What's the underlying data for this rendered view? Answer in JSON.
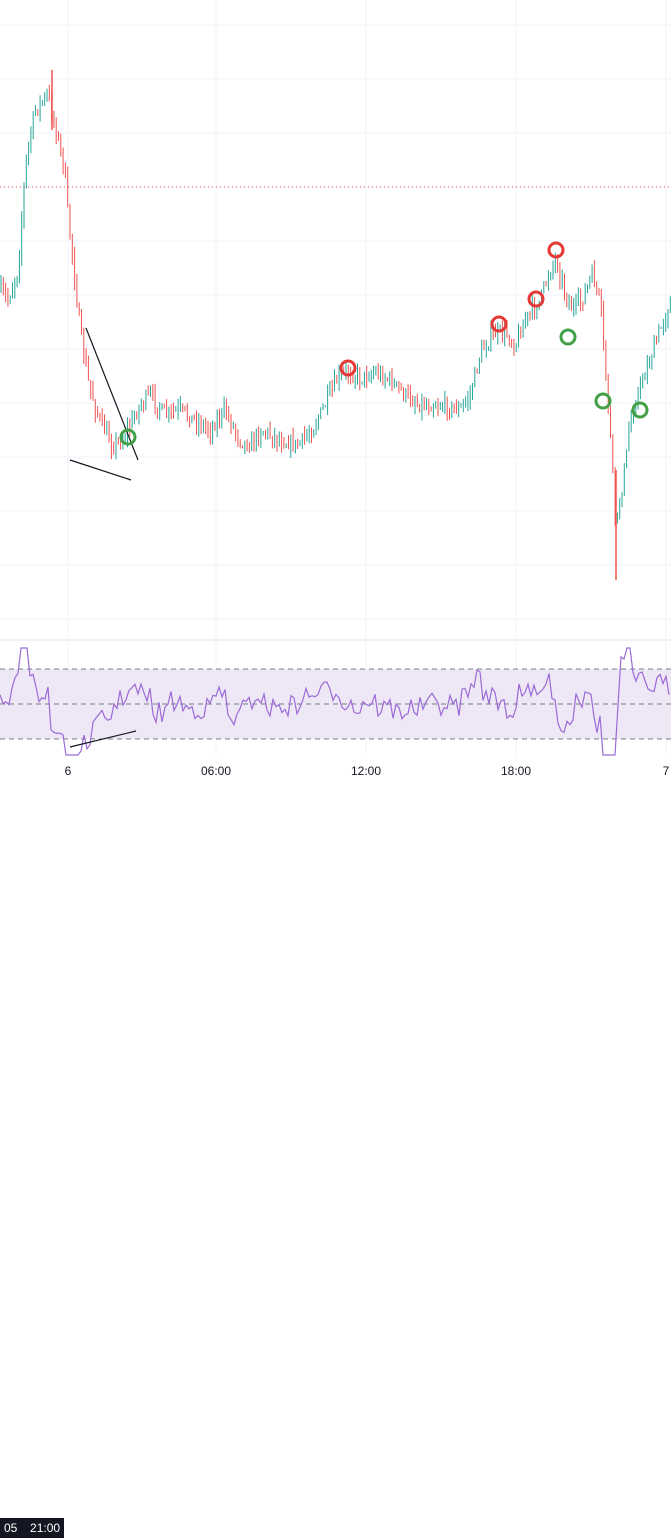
{
  "chart_data": [
    {
      "type": "candlestick",
      "panel": "price",
      "up_color": "#26a69a",
      "down_color": "#ef5350",
      "reference_line": {
        "style": "dotted",
        "color": "#ef5350"
      },
      "swing_markers": {
        "red": {
          "color": "#e53935",
          "times": [
            "11:50",
            "17:40",
            "18:40",
            "19:20"
          ]
        },
        "green": {
          "color": "#43a047",
          "times": [
            "02:30",
            "19:35",
            "22:10",
            "23:40"
          ]
        }
      },
      "trendlines": [
        "descending",
        "support"
      ]
    },
    {
      "type": "line",
      "panel": "oscillator",
      "line_color": "#9c6ad6",
      "band_fill": "#ede7f6",
      "band_lines": 3,
      "trendlines": [
        "support"
      ]
    }
  ],
  "time_axis": {
    "cursor_prefix": "05",
    "cursor_label": "21:00",
    "labels": [
      "6",
      "06:00",
      "12:00",
      "18:00",
      "7"
    ]
  }
}
